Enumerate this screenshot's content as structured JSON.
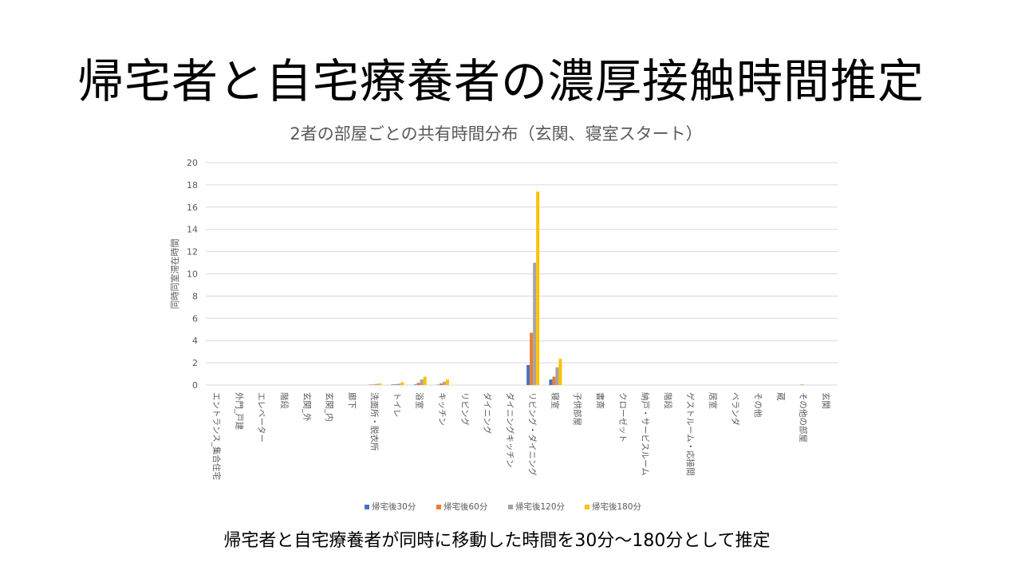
{
  "slide": {
    "title": "帰宅者と自宅療養者の濃厚接触時間推定",
    "footer": "帰宅者と自宅療養者が同時に移動した時間を30分～180分として推定"
  },
  "chart_data": {
    "type": "bar",
    "title": "2者の部屋ごとの共有時間分布（玄関、寝室スタート）",
    "xlabel": "",
    "ylabel": "同時同室滞在時間",
    "ylim": [
      0,
      20
    ],
    "yticks": [
      0,
      2,
      4,
      6,
      8,
      10,
      12,
      14,
      16,
      18,
      20
    ],
    "grid": true,
    "legend_position": "bottom",
    "categories": [
      "エントランス_集合住宅",
      "外門_戸建",
      "エレベーター",
      "階段",
      "玄関_外",
      "玄関_内",
      "廊下",
      "洗面所・脱衣所",
      "トイレ",
      "浴室",
      "キッチン",
      "リビング",
      "ダイニング",
      "ダイニングキッチン",
      "リビング・ダイニング",
      "寝室",
      "子供部屋",
      "書斎",
      "クローゼット",
      "納戸・サービスルーム",
      "階段",
      "ゲストルーム・応接間",
      "居室",
      "ベランダ",
      "その他",
      "蔵",
      "その他の部屋",
      "玄関"
    ],
    "series": [
      {
        "name": "帰宅後30分",
        "color": "#4472C4",
        "values": [
          0,
          0,
          0,
          0,
          0,
          0,
          0,
          0.03,
          0.05,
          0.05,
          0.03,
          0,
          0,
          0,
          1.8,
          0.5,
          0,
          0,
          0,
          0,
          0,
          0,
          0,
          0,
          0,
          0,
          0,
          0
        ]
      },
      {
        "name": "帰宅後60分",
        "color": "#ED7D31",
        "values": [
          0,
          0,
          0,
          0,
          0,
          0,
          0,
          0.05,
          0.08,
          0.2,
          0.15,
          0,
          0,
          0,
          4.7,
          0.75,
          0,
          0,
          0,
          0,
          0,
          0,
          0,
          0,
          0,
          0,
          0.05,
          0
        ]
      },
      {
        "name": "帰宅後120分",
        "color": "#A5A5A5",
        "values": [
          0,
          0,
          0,
          0,
          0,
          0,
          0,
          0.1,
          0.12,
          0.5,
          0.3,
          0,
          0,
          0,
          11.0,
          1.6,
          0,
          0,
          0,
          0,
          0,
          0,
          0,
          0,
          0,
          0,
          0,
          0
        ]
      },
      {
        "name": "帰宅後180分",
        "color": "#FFC000",
        "values": [
          0,
          0,
          0,
          0,
          0,
          0,
          0,
          0.15,
          0.25,
          0.75,
          0.5,
          0,
          0,
          0,
          17.4,
          2.35,
          0,
          0,
          0,
          0,
          0,
          0,
          0,
          0,
          0,
          0,
          0,
          0
        ]
      }
    ]
  }
}
